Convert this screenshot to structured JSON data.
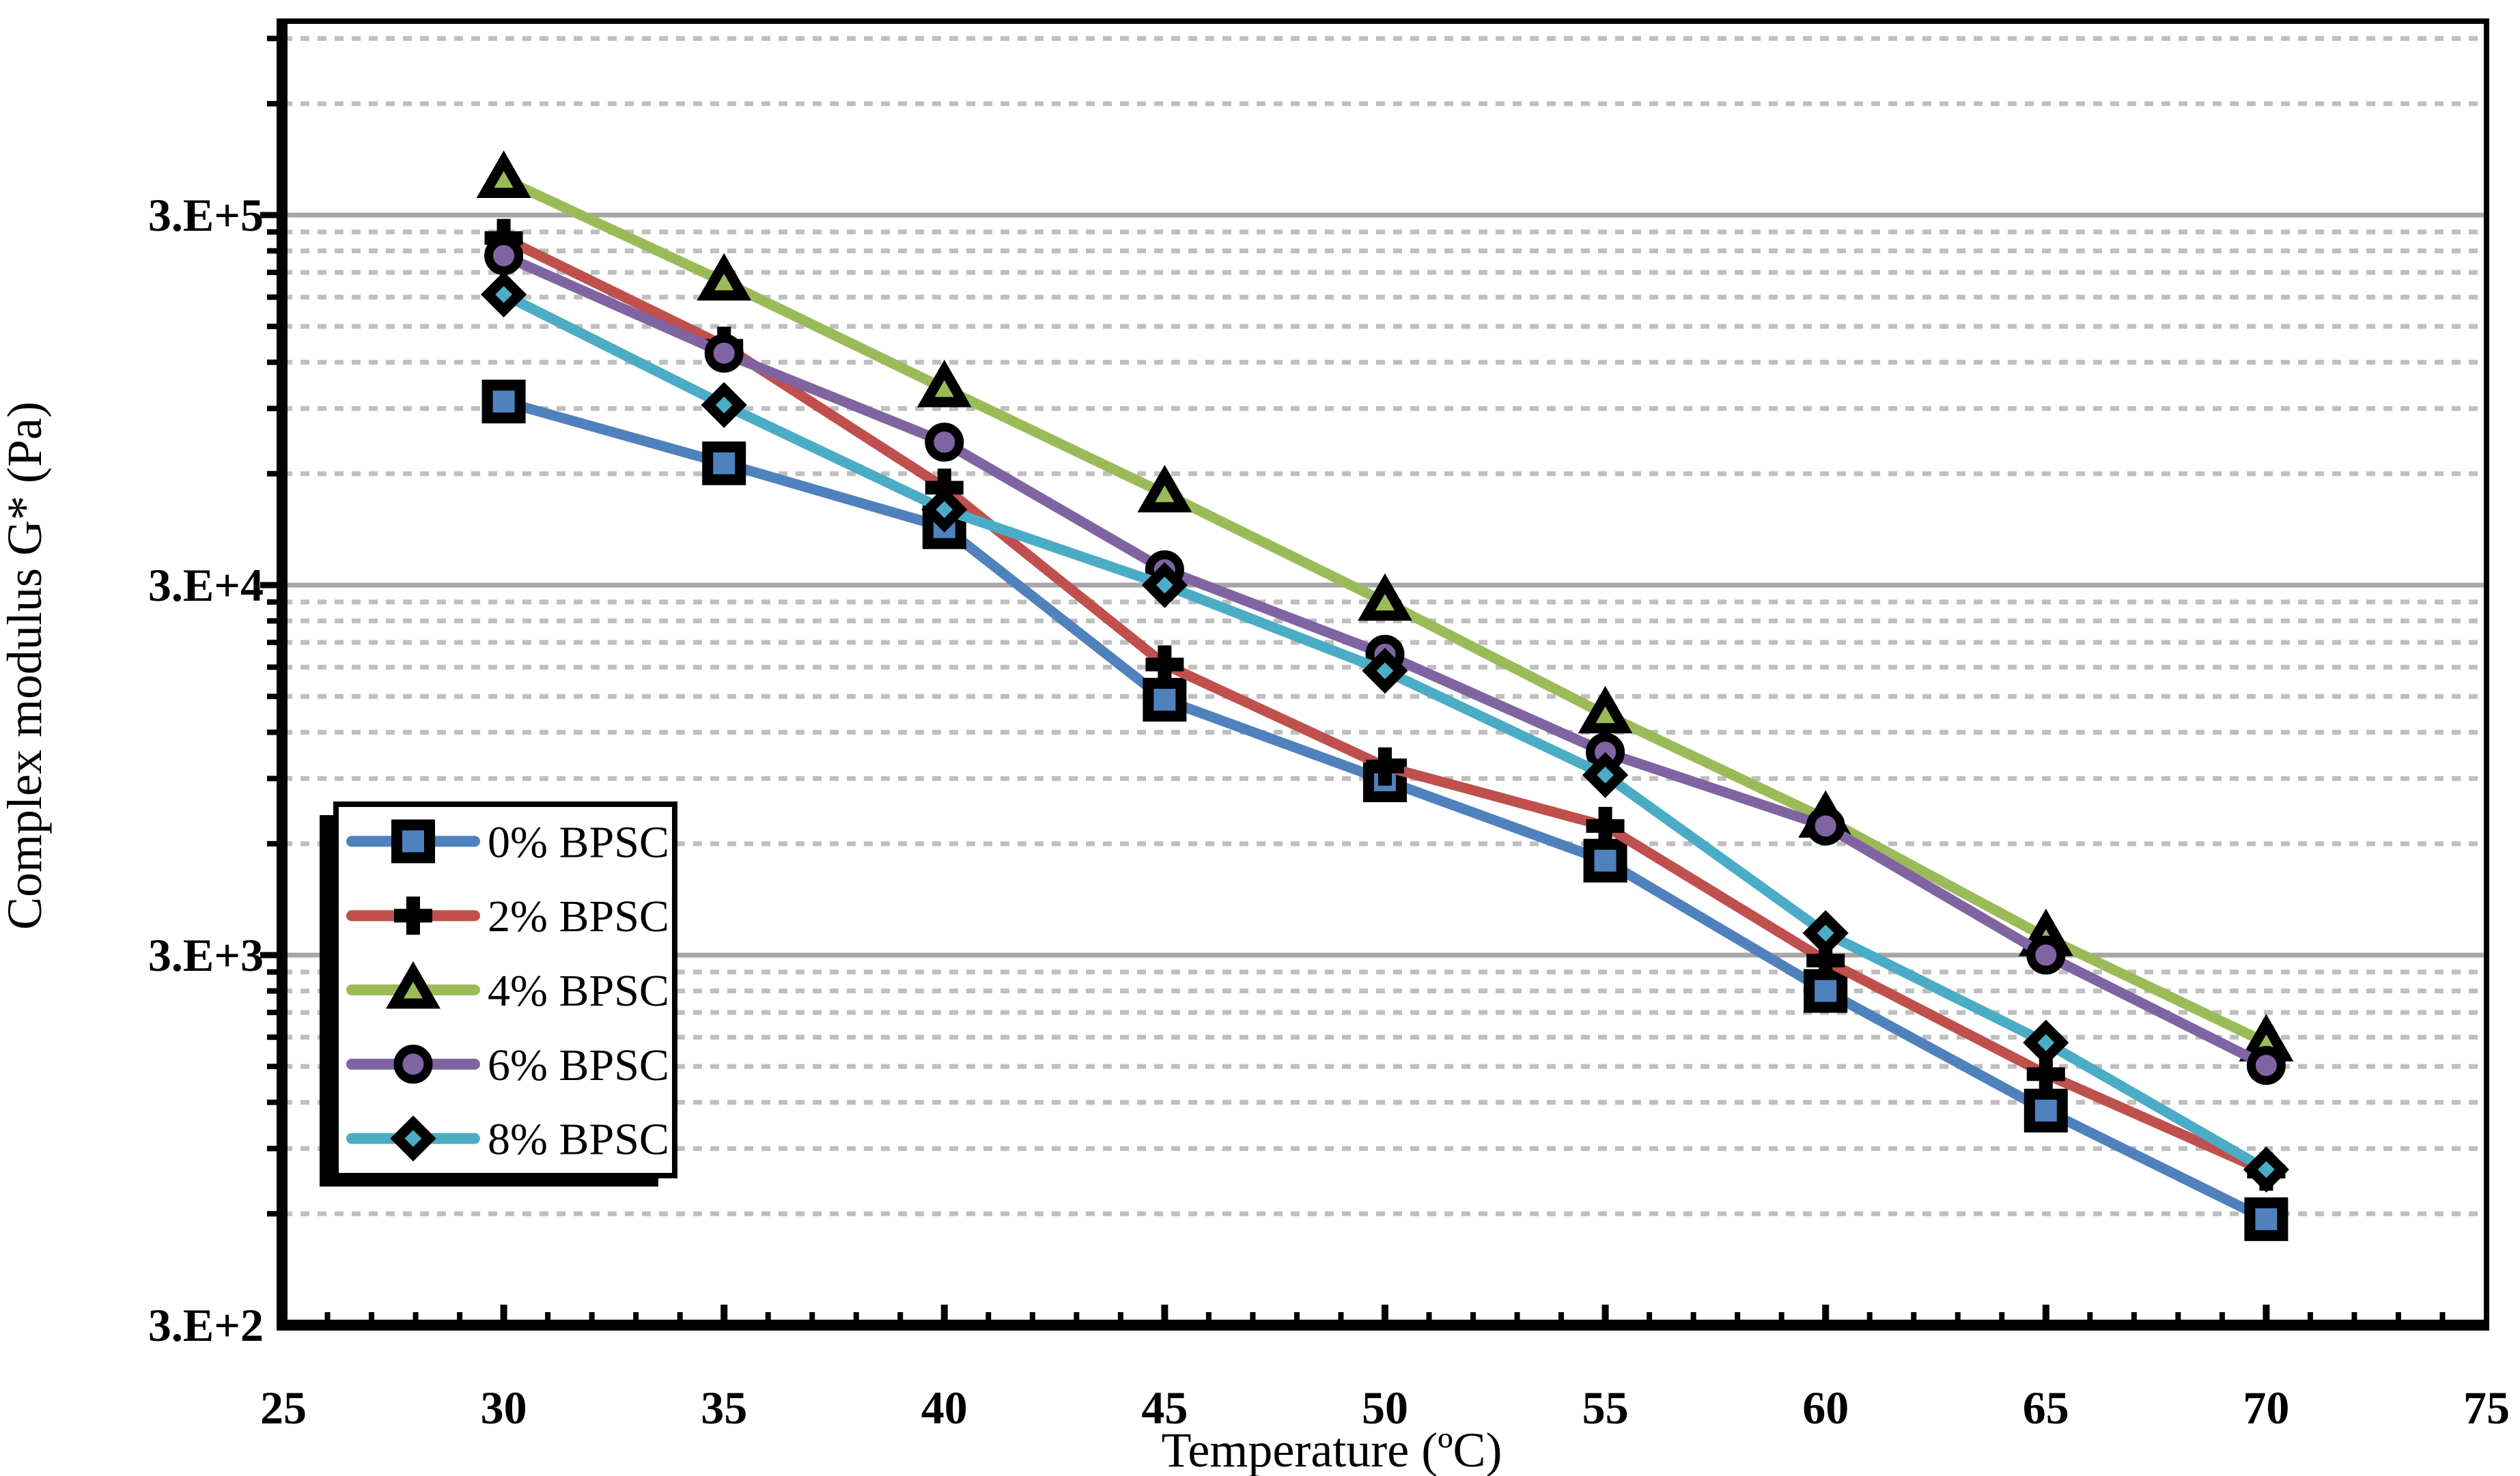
{
  "chart_data": {
    "type": "line",
    "title": "",
    "xlabel": "Temperature (ºC)",
    "ylabel": "Complex modulus G* (Pa)",
    "x": [
      30,
      35,
      40,
      45,
      50,
      55,
      60,
      65,
      70
    ],
    "x_axis": {
      "min": 25,
      "max": 75,
      "major_step": 5,
      "minor_step": 1,
      "tick_labels": [
        {
          "label": "25",
          "value": 25
        },
        {
          "label": "30",
          "value": 30
        },
        {
          "label": "35",
          "value": 35
        },
        {
          "label": "40",
          "value": 40
        },
        {
          "label": "45",
          "value": 45
        },
        {
          "label": "50",
          "value": 50
        },
        {
          "label": "55",
          "value": 55
        },
        {
          "label": "60",
          "value": 60
        },
        {
          "label": "65",
          "value": 65
        },
        {
          "label": "70",
          "value": 70
        },
        {
          "label": "75",
          "value": 75
        }
      ]
    },
    "y_axis": {
      "scale": "log",
      "min": 300,
      "max": 1000000,
      "tick_labels": [
        {
          "label": "3.E+5",
          "value": 300000
        },
        {
          "label": "3.E+4",
          "value": 30000
        },
        {
          "label": "3.E+3",
          "value": 3000
        },
        {
          "label": "3.E+2",
          "value": 300
        }
      ],
      "major_gridlines": [
        300000,
        30000,
        3000
      ],
      "minor_gridline_multipliers": [
        2,
        3,
        4,
        5,
        6,
        7,
        8,
        9
      ]
    },
    "grid": {
      "major_color": "#A6A6A6",
      "minor_color": "#BFBFBF",
      "minor_style": "dashed",
      "axis_color": "#000000"
    },
    "series": [
      {
        "name": "0% BPSC",
        "color": "#4F81BD",
        "marker": "square",
        "values": [
          94000,
          64000,
          43000,
          14700,
          8900,
          5400,
          2400,
          1140,
          580
        ]
      },
      {
        "name": "2% BPSC",
        "color": "#C0504D",
        "marker": "plus",
        "values": [
          260000,
          133000,
          55000,
          18300,
          9700,
          6700,
          2900,
          1430,
          780
        ]
      },
      {
        "name": "4% BPSC",
        "color": "#9BBB59",
        "marker": "triangle",
        "values": [
          375000,
          198000,
          102000,
          53000,
          27000,
          13400,
          7000,
          3350,
          1740
        ]
      },
      {
        "name": "6% BPSC",
        "color": "#8064A2",
        "marker": "circle",
        "values": [
          233000,
          127000,
          73000,
          33000,
          19500,
          10600,
          6700,
          3000,
          1510
        ]
      },
      {
        "name": "8% BPSC",
        "color": "#4BACC6",
        "marker": "diamond",
        "values": [
          183000,
          92000,
          48000,
          30000,
          17600,
          9200,
          3440,
          1740,
          790
        ]
      }
    ],
    "legend": {
      "position": "middle-left",
      "labels": [
        "0% BPSC",
        "2% BPSC",
        "4% BPSC",
        "6% BPSC",
        "8% BPSC"
      ]
    }
  }
}
